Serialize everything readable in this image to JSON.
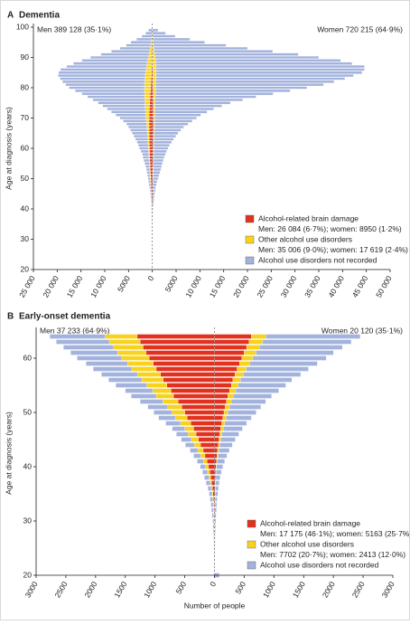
{
  "chart_data": [
    {
      "type": "bar",
      "orientation": "horizontal",
      "label": "A",
      "title": "Dementia",
      "men_label": "Men 389 128 (35·1%)",
      "women_label": "Women 720 215 (64·9%)",
      "ylabel": "Age at diagnosis (years)",
      "xlim": [
        -25000,
        50000
      ],
      "xticks": [
        {
          "value": -25000,
          "label": "25 000"
        },
        {
          "value": -20000,
          "label": "20 000"
        },
        {
          "value": -15000,
          "label": "15 000"
        },
        {
          "value": -10000,
          "label": "10 000"
        },
        {
          "value": -5000,
          "label": "5000"
        },
        0,
        5000,
        {
          "value": 10000,
          "label": "10 000"
        },
        {
          "value": 15000,
          "label": "15 000"
        },
        {
          "value": 20000,
          "label": "20 000"
        },
        {
          "value": 25000,
          "label": "25 000"
        },
        {
          "value": 30000,
          "label": "30 000"
        },
        {
          "value": 35000,
          "label": "35 000"
        },
        {
          "value": 40000,
          "label": "40 000"
        },
        {
          "value": 45000,
          "label": "45 000"
        },
        {
          "value": 50000,
          "label": "50 000"
        }
      ],
      "ylim": [
        20,
        100
      ],
      "yticks": [
        20,
        30,
        40,
        50,
        60,
        70,
        80,
        90,
        100
      ],
      "y": [
        35,
        36,
        37,
        38,
        39,
        40,
        41,
        42,
        43,
        44,
        45,
        46,
        47,
        48,
        49,
        50,
        51,
        52,
        53,
        54,
        55,
        56,
        57,
        58,
        59,
        60,
        61,
        62,
        63,
        64,
        65,
        66,
        67,
        68,
        69,
        70,
        71,
        72,
        73,
        74,
        75,
        76,
        77,
        78,
        79,
        80,
        81,
        82,
        83,
        84,
        85,
        86,
        87,
        88,
        89,
        90,
        91,
        92,
        93,
        94,
        95,
        96,
        97,
        98,
        99
      ],
      "series": [
        {
          "name": "Alcohol-related brain damage",
          "note": "Men: 26 084 (6·7%); women: 8950 (1·2%)",
          "color": "#e2321f",
          "men": [
            -20,
            -25,
            -35,
            -45,
            -60,
            -80,
            -100,
            -120,
            -140,
            -160,
            -190,
            -220,
            -250,
            -280,
            -310,
            -340,
            -370,
            -400,
            -430,
            -460,
            -490,
            -520,
            -540,
            -560,
            -580,
            -600,
            -620,
            -640,
            -650,
            -660,
            -670,
            -680,
            -690,
            -690,
            -690,
            -680,
            -670,
            -650,
            -620,
            -590,
            -560,
            -520,
            -480,
            -440,
            -400,
            -360,
            -320,
            -280,
            -240,
            -200,
            -170,
            -140,
            -110,
            -90,
            -70,
            -50,
            -40,
            -30,
            -20,
            -15,
            -10,
            -8,
            -5,
            -3,
            -2
          ],
          "women": [
            5,
            7,
            10,
            14,
            18,
            25,
            32,
            40,
            48,
            56,
            65,
            75,
            85,
            95,
            105,
            115,
            125,
            135,
            145,
            155,
            165,
            175,
            185,
            195,
            205,
            215,
            225,
            232,
            238,
            243,
            247,
            250,
            250,
            248,
            245,
            240,
            233,
            225,
            215,
            205,
            195,
            185,
            175,
            165,
            155,
            145,
            135,
            125,
            115,
            105,
            95,
            85,
            75,
            65,
            55,
            45,
            35,
            28,
            20,
            14,
            10,
            7,
            4,
            2,
            1
          ]
        },
        {
          "name": "Other alcohol use disorders",
          "note": "Men: 35 006 (9·0%); women: 17 619 (2·4%)",
          "color": "#f8d21c",
          "men": [
            -5,
            -8,
            -10,
            -15,
            -20,
            -25,
            -30,
            -40,
            -50,
            -60,
            -70,
            -80,
            -90,
            -100,
            -110,
            -120,
            -130,
            -140,
            -150,
            -160,
            -170,
            -180,
            -190,
            -200,
            -220,
            -240,
            -260,
            -290,
            -320,
            -350,
            -390,
            -430,
            -480,
            -530,
            -590,
            -650,
            -720,
            -790,
            -860,
            -930,
            -1000,
            -1070,
            -1140,
            -1200,
            -1250,
            -1300,
            -1320,
            -1330,
            -1320,
            -1300,
            -1250,
            -1180,
            -1100,
            -1000,
            -880,
            -760,
            -640,
            -520,
            -420,
            -330,
            -250,
            -180,
            -120,
            -80,
            -50
          ],
          "women": [
            2,
            3,
            4,
            5,
            7,
            9,
            11,
            14,
            17,
            20,
            24,
            28,
            32,
            37,
            42,
            48,
            54,
            60,
            67,
            74,
            81,
            89,
            97,
            106,
            115,
            125,
            135,
            146,
            157,
            169,
            181,
            195,
            210,
            226,
            243,
            262,
            282,
            304,
            328,
            354,
            382,
            412,
            444,
            478,
            514,
            552,
            590,
            630,
            670,
            700,
            720,
            730,
            720,
            690,
            640,
            570,
            490,
            400,
            310,
            230,
            160,
            100,
            60,
            30,
            15
          ]
        },
        {
          "name": "Alcohol use disorders not recorded",
          "color": "#a3b3dd",
          "men": [
            -5,
            -7,
            -15,
            -20,
            -30,
            -45,
            -70,
            -90,
            -110,
            -130,
            -160,
            -200,
            -260,
            -320,
            -380,
            -440,
            -500,
            -560,
            -670,
            -780,
            -940,
            -1100,
            -1220,
            -1340,
            -1600,
            -1860,
            -2070,
            -2270,
            -2580,
            -2890,
            -3190,
            -3490,
            -3830,
            -4180,
            -4820,
            -5470,
            -6310,
            -7160,
            -8020,
            -8880,
            -9840,
            -10910,
            -11980,
            -13160,
            -14550,
            -15840,
            -16560,
            -17290,
            -17840,
            -18300,
            -18280,
            -17980,
            -16790,
            -15510,
            -13850,
            -12190,
            -10120,
            -8050,
            -6360,
            -5155,
            -4240,
            -3112,
            -2075,
            -1317,
            -748
          ],
          "women": [
            23,
            30,
            36,
            56,
            75,
            116,
            157,
            216,
            285,
            344,
            411,
            497,
            583,
            718,
            853,
            1037,
            1221,
            1405,
            1588,
            1721,
            1854,
            2036,
            2218,
            2449,
            2680,
            2960,
            3240,
            3672,
            4105,
            4538,
            4972,
            5555,
            6140,
            7026,
            7912,
            8798,
            9685,
            10971,
            12357,
            14041,
            15823,
            18403,
            21181,
            24757,
            28331,
            31803,
            35275,
            37445,
            39715,
            41495,
            43285,
            43785,
            43805,
            41245,
            38905,
            34385,
            30175,
            24872,
            19670,
            15256,
            10830,
            7793,
            4736,
            2768,
            1184
          ]
        }
      ]
    },
    {
      "type": "bar",
      "orientation": "horizontal",
      "label": "B",
      "title": "Early-onset dementia",
      "men_label": "Men 37 233 (64·9%)",
      "women_label": "Women 20 120 (35·1%)",
      "ylabel": "Age at diagnosis (years)",
      "xlabel": "Number of people",
      "xlim": [
        -3000,
        3000
      ],
      "xticks": [
        {
          "value": -3000,
          "label": "3000"
        },
        {
          "value": -2500,
          "label": "2500"
        },
        {
          "value": -2000,
          "label": "2000"
        },
        {
          "value": -1500,
          "label": "1500"
        },
        {
          "value": -1000,
          "label": "1000"
        },
        {
          "value": -500,
          "label": "500"
        },
        0,
        500,
        1000,
        1500,
        2000,
        2500,
        3000
      ],
      "ylim": [
        20,
        65
      ],
      "yticks": [
        20,
        30,
        40,
        50,
        60
      ],
      "y": [
        20,
        21,
        22,
        23,
        24,
        25,
        26,
        27,
        28,
        29,
        30,
        31,
        32,
        33,
        34,
        35,
        36,
        37,
        38,
        39,
        40,
        41,
        42,
        43,
        44,
        45,
        46,
        47,
        48,
        49,
        50,
        51,
        52,
        53,
        54,
        55,
        56,
        57,
        58,
        59,
        60,
        61,
        62,
        63,
        64
      ],
      "series": [
        {
          "name": "Alcohol-related brain damage",
          "note": "Men: 17 175 (46·1%); women: 5163 (25·7%)",
          "color": "#e2321f",
          "men": [
            -1,
            0,
            0,
            -1,
            -1,
            -1,
            -2,
            -2,
            -3,
            -4,
            -5,
            -8,
            -10,
            -14,
            -20,
            -26,
            -35,
            -48,
            -62,
            -78,
            -100,
            -125,
            -160,
            -190,
            -235,
            -270,
            -310,
            -350,
            -400,
            -460,
            -500,
            -550,
            -610,
            -690,
            -730,
            -800,
            -860,
            -910,
            -980,
            -1030,
            -1100,
            -1150,
            -1200,
            -1250,
            -1300
          ],
          "women": [
            2,
            1,
            1,
            1,
            1,
            1,
            2,
            2,
            2,
            3,
            3,
            4,
            5,
            6,
            7,
            9,
            11,
            14,
            17,
            21,
            26,
            33,
            42,
            52,
            63,
            76,
            90,
            105,
            122,
            140,
            160,
            180,
            200,
            225,
            255,
            285,
            310,
            345,
            380,
            420,
            460,
            500,
            540,
            580,
            620
          ]
        },
        {
          "name": "Other alcohol use disorders",
          "note": "Men: 7702 (20·7%); women: 2413 (12·0%)",
          "color": "#f8d21c",
          "men": [
            0,
            0,
            0,
            0,
            -1,
            -1,
            -1,
            -2,
            -2,
            -3,
            -4,
            -5,
            -7,
            -9,
            -12,
            -15,
            -20,
            -26,
            -32,
            -40,
            -50,
            -60,
            -75,
            -90,
            -105,
            -120,
            -135,
            -150,
            -175,
            -200,
            -215,
            -235,
            -260,
            -290,
            -310,
            -340,
            -360,
            -385,
            -410,
            -430,
            -460,
            -480,
            -500,
            -520,
            -540
          ],
          "women": [
            0,
            0,
            0,
            0,
            0,
            0,
            1,
            1,
            1,
            1,
            1,
            2,
            2,
            2,
            3,
            3,
            4,
            5,
            6,
            8,
            10,
            13,
            17,
            21,
            26,
            31,
            37,
            43,
            50,
            58,
            66,
            74,
            82,
            92,
            104,
            116,
            128,
            140,
            155,
            170,
            185,
            200,
            215,
            230,
            245
          ]
        },
        {
          "name": "Alcohol use disorders not recorded",
          "color": "#a3b3dd",
          "men": [
            -9,
            -4,
            -5,
            -5,
            -6,
            -8,
            -9,
            -11,
            -15,
            -18,
            -21,
            -27,
            -33,
            -37,
            -43,
            -49,
            -55,
            -66,
            -76,
            -82,
            -90,
            -105,
            -115,
            -130,
            -150,
            -170,
            -195,
            -210,
            -245,
            -280,
            -305,
            -335,
            -380,
            -420,
            -460,
            -520,
            -560,
            -605,
            -650,
            -700,
            -750,
            -790,
            -840,
            -890,
            -930
          ],
          "women": [
            78,
            3,
            4,
            5,
            6,
            8,
            8,
            10,
            13,
            15,
            19,
            21,
            25,
            30,
            35,
            43,
            50,
            61,
            72,
            86,
            104,
            124,
            151,
            177,
            211,
            243,
            283,
            322,
            368,
            422,
            474,
            526,
            578,
            643,
            721,
            799,
            862,
            965,
            1045,
            1140,
            1235,
            1300,
            1395,
            1490,
            1585
          ]
        }
      ]
    }
  ]
}
